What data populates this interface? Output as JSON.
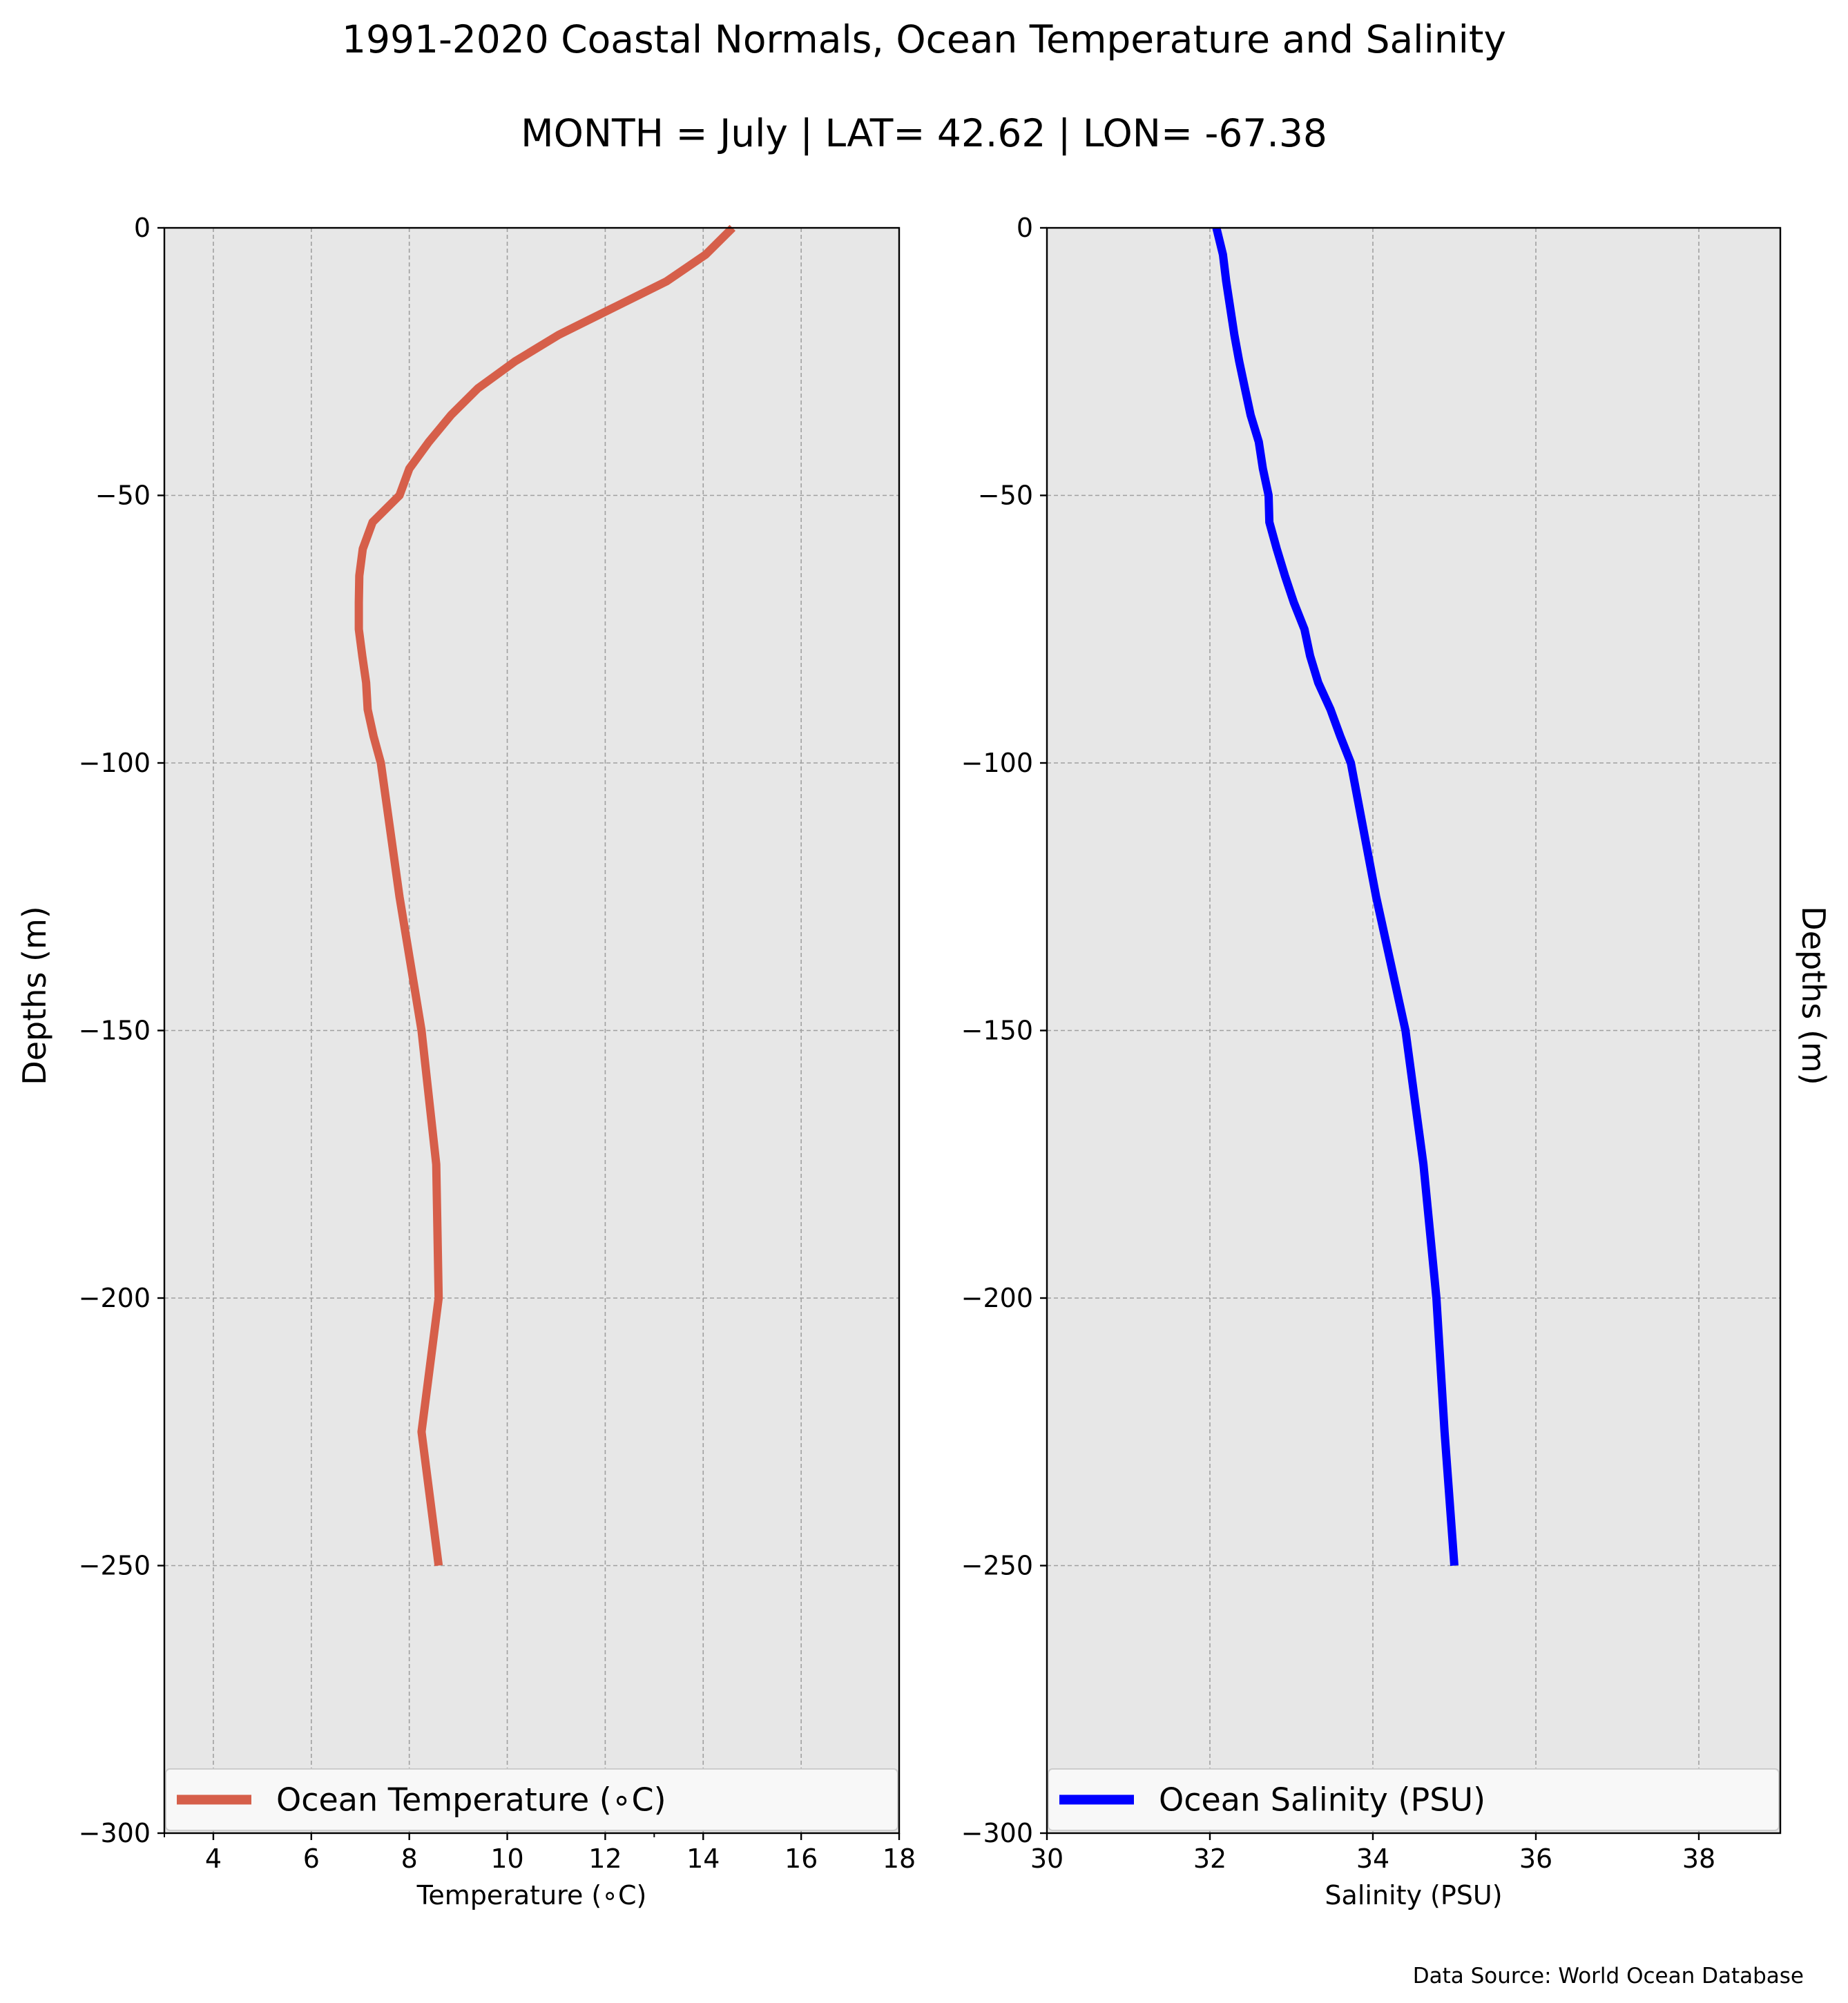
{
  "figure": {
    "title": "1991-2020 Coastal Normals, Ocean Temperature and Salinity",
    "subtitle": "MONTH = July | LAT= 42.62 | LON= -67.38",
    "source": "Data Source: World Ocean Database"
  },
  "chart_data": [
    {
      "type": "line",
      "orientation": "vertical-profile",
      "xlabel": "Temperature ($^\\circ$C)",
      "xlabel_display": "Temperature (∘C)",
      "ylabel": "Depths (m)",
      "xlim": [
        3,
        18
      ],
      "ylim": [
        -300,
        0
      ],
      "xticks": [
        4,
        6,
        8,
        10,
        12,
        14,
        16,
        18
      ],
      "yticks": [
        0,
        -50,
        -100,
        -150,
        -200,
        -250,
        -300
      ],
      "ytick_labels": [
        "0",
        "−50",
        "−100",
        "−150",
        "−200",
        "−250",
        "−300"
      ],
      "grid": true,
      "legend_position": "bottom",
      "series": [
        {
          "name": "Ocean Temperature ($^\\circ$C)",
          "name_display": "Ocean Temperature (∘C)",
          "color": "#d65f4a",
          "depth": [
            0,
            -5,
            -10,
            -15,
            -20,
            -25,
            -30,
            -35,
            -40,
            -45,
            -50,
            -55,
            -60,
            -65,
            -70,
            -75,
            -80,
            -85,
            -90,
            -95,
            -100,
            -125,
            -150,
            -175,
            -200,
            -225,
            -250
          ],
          "x": [
            14.6,
            14.05,
            13.25,
            12.15,
            11.05,
            10.15,
            9.4,
            8.85,
            8.4,
            8.0,
            7.8,
            7.25,
            7.05,
            6.98,
            6.97,
            6.97,
            7.04,
            7.12,
            7.15,
            7.27,
            7.42,
            7.8,
            8.25,
            8.55,
            8.6,
            8.25,
            8.6
          ]
        }
      ],
      "background": "#e7e7e7"
    },
    {
      "type": "line",
      "orientation": "vertical-profile",
      "xlabel": "Salinity (PSU)",
      "ylabel": "Depths (m)",
      "xlim": [
        30,
        39
      ],
      "ylim": [
        -300,
        0
      ],
      "xticks": [
        30,
        32,
        34,
        36,
        38
      ],
      "yticks": [
        0,
        -50,
        -100,
        -150,
        -200,
        -250,
        -300
      ],
      "ytick_labels": [
        "0",
        "−50",
        "−100",
        "−150",
        "−200",
        "−250",
        "−300"
      ],
      "grid": true,
      "legend_position": "bottom",
      "series": [
        {
          "name": "Ocean Salinity (PSU)",
          "color": "#0000ff",
          "depth": [
            0,
            -5,
            -10,
            -15,
            -20,
            -25,
            -30,
            -35,
            -40,
            -45,
            -50,
            -55,
            -60,
            -65,
            -70,
            -75,
            -80,
            -85,
            -90,
            -95,
            -100,
            -125,
            -150,
            -175,
            -200,
            -225,
            -250
          ],
          "x": [
            32.08,
            32.16,
            32.2,
            32.25,
            32.3,
            32.36,
            32.43,
            32.5,
            32.6,
            32.65,
            32.72,
            32.73,
            32.82,
            32.92,
            33.03,
            33.16,
            33.23,
            33.33,
            33.48,
            33.6,
            33.73,
            34.04,
            34.4,
            34.62,
            34.78,
            34.88,
            35.0
          ]
        }
      ],
      "background": "#e7e7e7"
    }
  ]
}
